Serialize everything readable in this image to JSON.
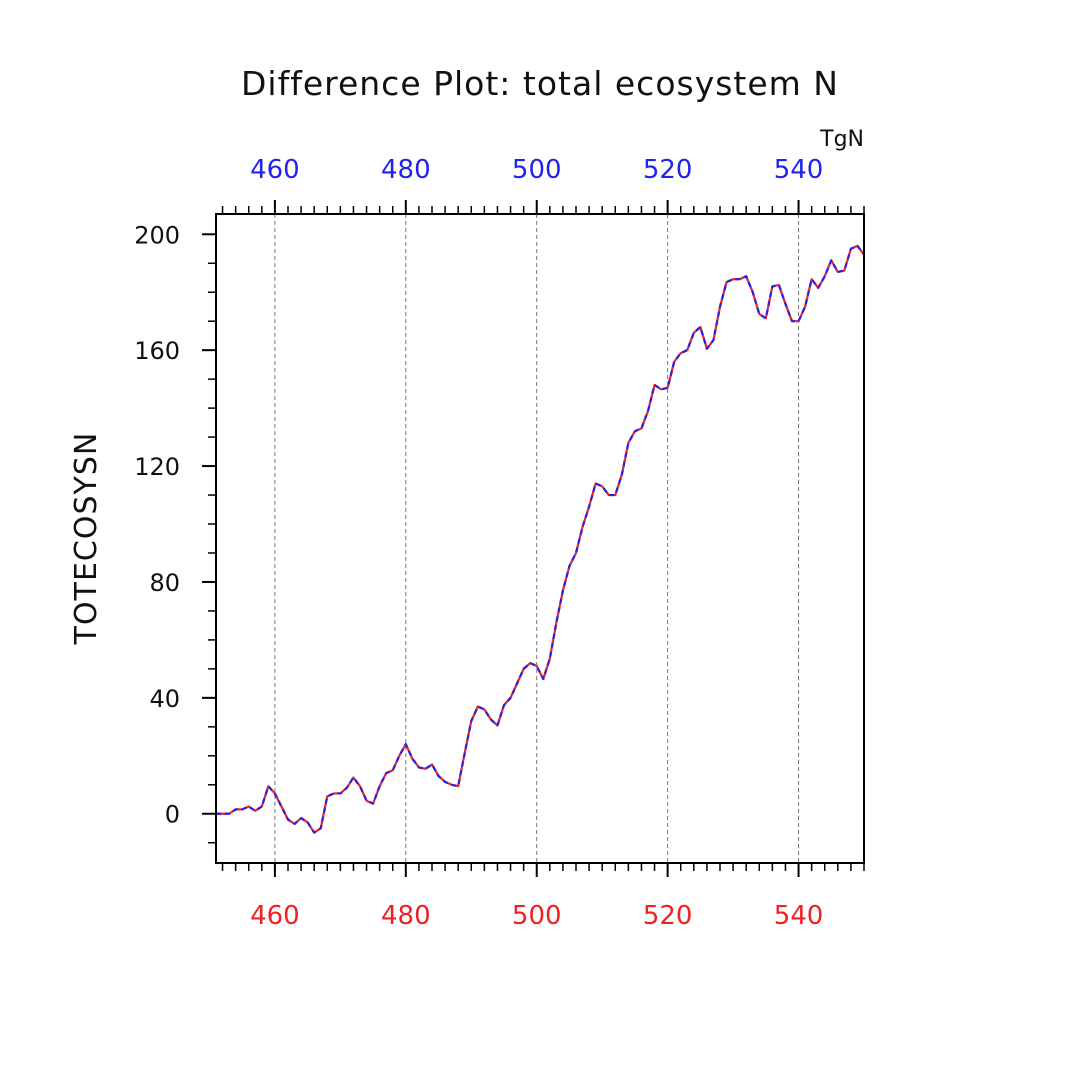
{
  "chart_data": {
    "type": "line",
    "title": "Difference Plot: total ecosystem N",
    "ylabel": "TOTECOSYSN",
    "units": "TgN",
    "xlim": [
      451,
      550
    ],
    "ylim": [
      -17,
      207
    ],
    "x_major_ticks": [
      460,
      480,
      500,
      520,
      540
    ],
    "y_major_ticks": [
      0,
      40,
      80,
      120,
      160,
      200
    ],
    "bottom_axis_color": "#ee2222",
    "top_axis_color": "#2222ee",
    "grid": "vertical-dashed",
    "series": [
      {
        "color_a": "#ee2222",
        "color_b": "#2222ee",
        "style": "red-blue-dashed",
        "x": [
          451,
          452,
          453,
          454,
          455,
          456,
          457,
          458,
          459,
          460,
          461,
          462,
          463,
          464,
          465,
          466,
          467,
          468,
          469,
          470,
          471,
          472,
          473,
          474,
          475,
          476,
          477,
          478,
          479,
          480,
          481,
          482,
          483,
          484,
          485,
          486,
          487,
          488,
          489,
          490,
          491,
          492,
          493,
          494,
          495,
          496,
          497,
          498,
          499,
          500,
          501,
          502,
          503,
          504,
          505,
          506,
          507,
          508,
          509,
          510,
          511,
          512,
          513,
          514,
          515,
          516,
          517,
          518,
          519,
          520,
          521,
          522,
          523,
          524,
          525,
          526,
          527,
          528,
          529,
          530,
          531,
          532,
          533,
          534,
          535,
          536,
          537,
          538,
          539,
          540,
          541,
          542,
          543,
          544,
          545,
          546,
          547,
          548,
          549,
          550
        ],
        "values": [
          0,
          0,
          0,
          1.5,
          1.5,
          2.5,
          1,
          2.5,
          9.5,
          7,
          2.5,
          -2,
          -3.5,
          -1.5,
          -3,
          -6.5,
          -5,
          6,
          7,
          7,
          9,
          12.5,
          9.5,
          4.5,
          3.5,
          9.5,
          14,
          15,
          20,
          24,
          19,
          16,
          15.5,
          17,
          13,
          11,
          10,
          9.5,
          21,
          32,
          37,
          36,
          32.5,
          30.5,
          37.5,
          40,
          45,
          50,
          52,
          51,
          46.5,
          53.5,
          66,
          77,
          85.5,
          90,
          99,
          106,
          114,
          113,
          110,
          110,
          117,
          128,
          132,
          133,
          139,
          148,
          146.5,
          147,
          156,
          159,
          160,
          166,
          168,
          160.5,
          163.5,
          175,
          183.5,
          184.5,
          184.5,
          185.5,
          180,
          172.5,
          171,
          182,
          182.5,
          176,
          170,
          170,
          175,
          184.5,
          181.5,
          185.5,
          191,
          187,
          187.5,
          195,
          196,
          193
        ]
      }
    ]
  }
}
